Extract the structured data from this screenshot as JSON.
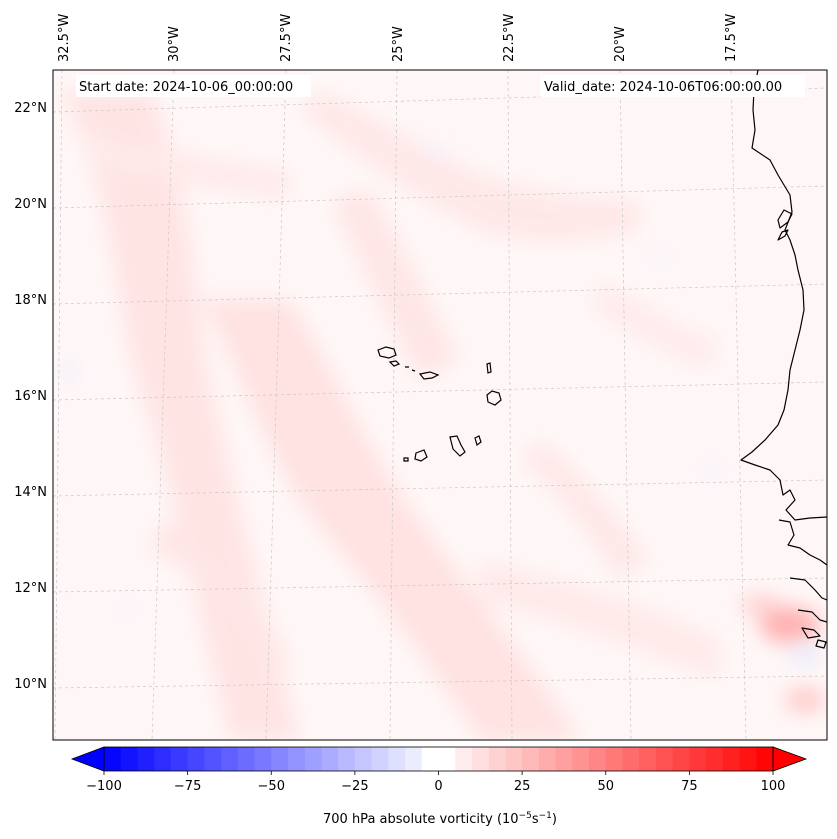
{
  "map": {
    "start_label": "Start date: 2024-10-06_00:00:00",
    "valid_label": "Valid_date: 2024-10-06T06:00:00.00",
    "lon_labels": [
      "32.5°W",
      "30°W",
      "27.5°W",
      "25°W",
      "22.5°W",
      "20°W",
      "17.5°W"
    ],
    "lat_labels": [
      "22°N",
      "20°N",
      "18°N",
      "16°N",
      "14°N",
      "12°N",
      "10°N"
    ],
    "field": "700 hPa absolute vorticity",
    "positive_color": "#ff0000",
    "negative_color": "#0000ff",
    "neutral_color": "#ffffff",
    "coast_color": "#000000"
  },
  "colorbar": {
    "ticks": [
      "−100",
      "−75",
      "−50",
      "−25",
      "0",
      "25",
      "50",
      "75",
      "100"
    ],
    "values": [
      -100,
      -75,
      -50,
      -25,
      0,
      25,
      50,
      75,
      100
    ],
    "range": [
      -100,
      100
    ],
    "label_main": "700 hPa absolute vorticity (10",
    "label_exp1": "−5",
    "label_mid": "s",
    "label_exp2": "−1",
    "label_end": ")"
  }
}
